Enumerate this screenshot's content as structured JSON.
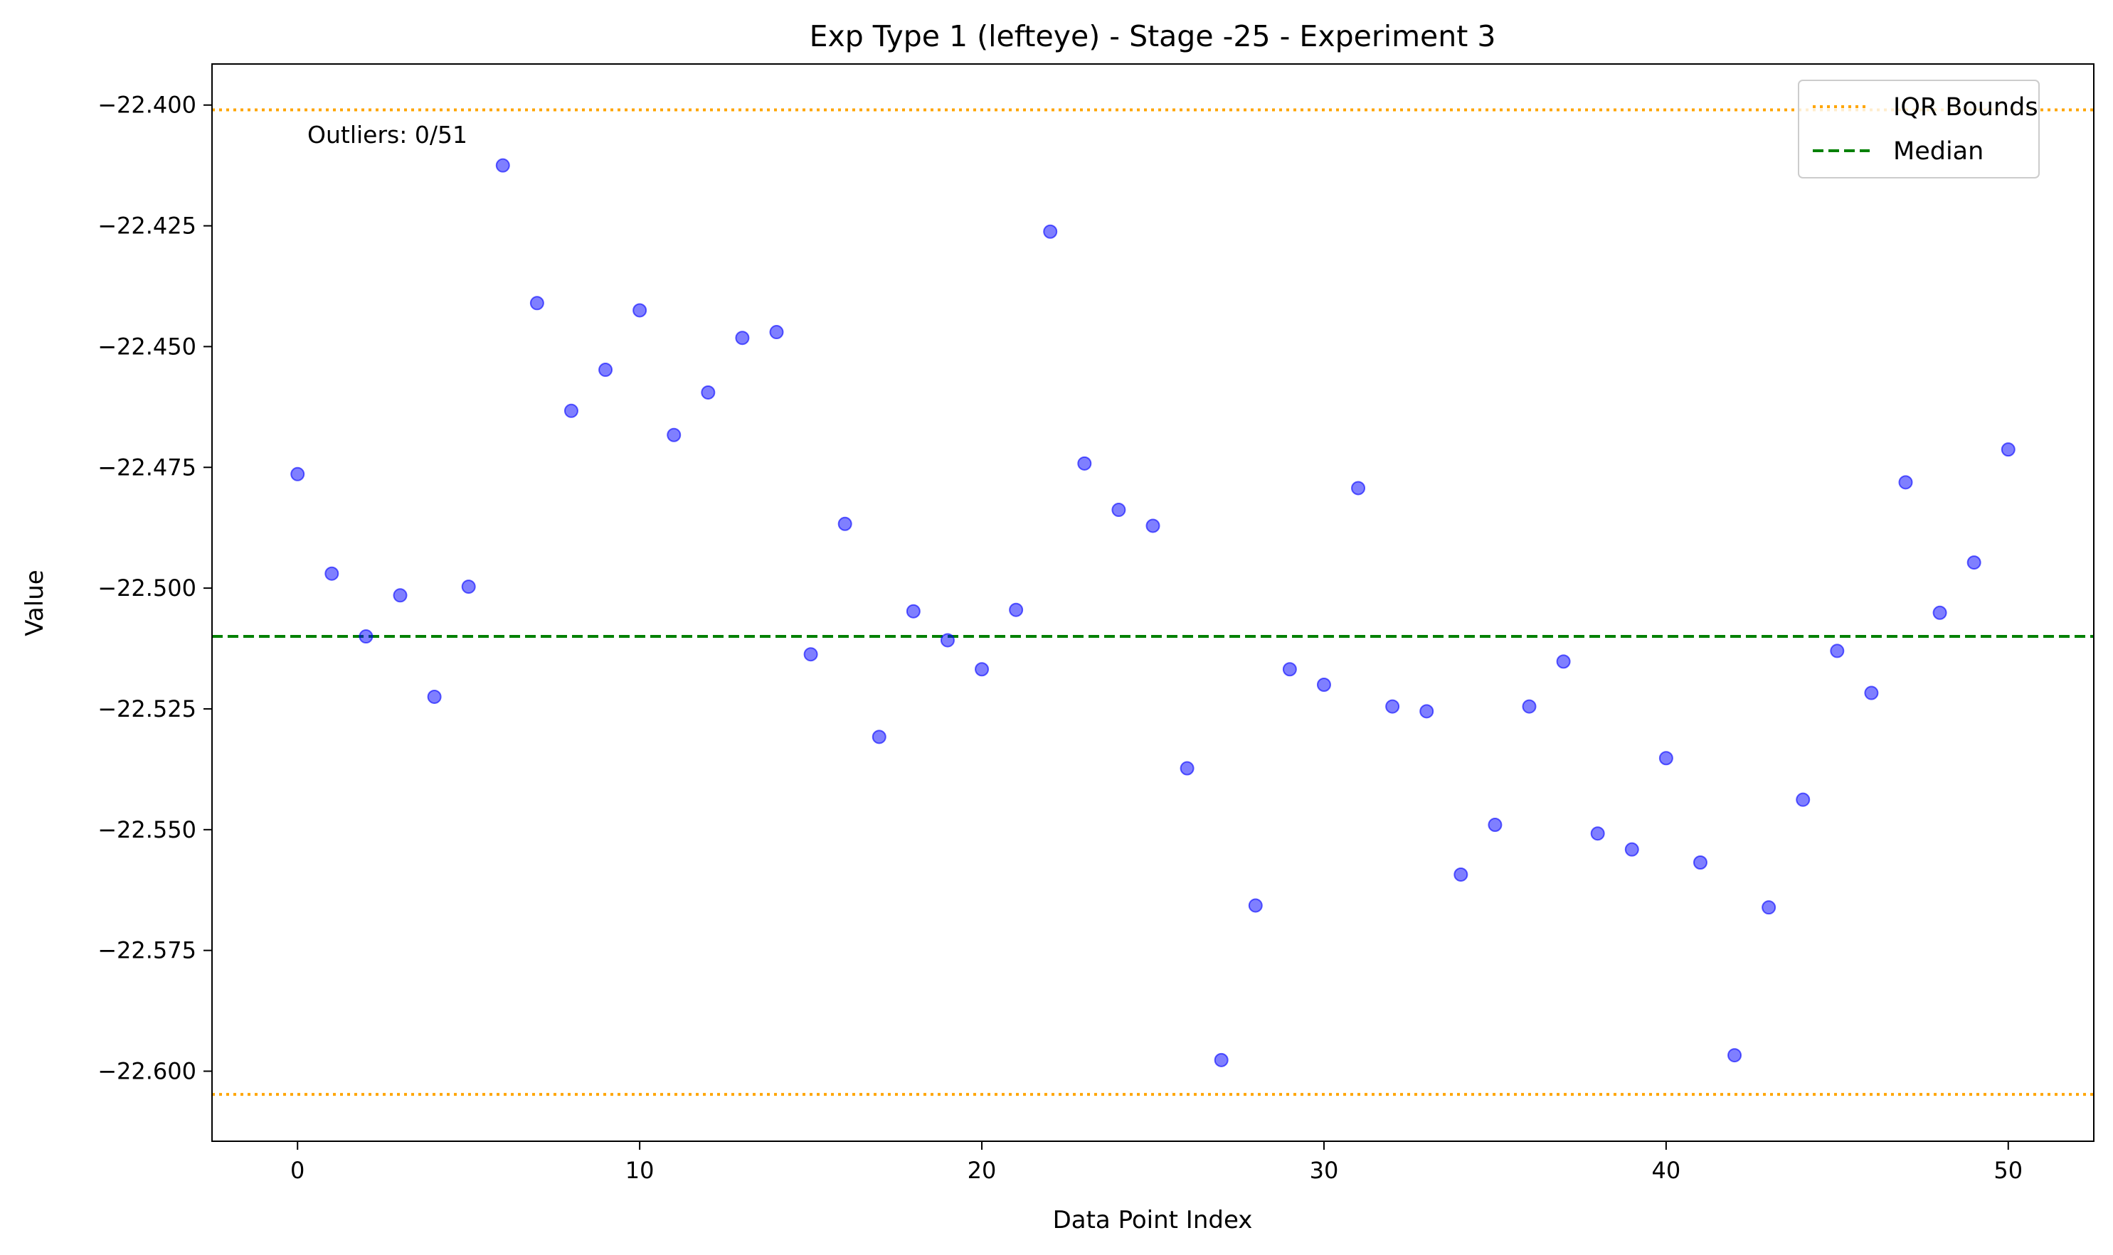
{
  "chart_data": {
    "type": "scatter",
    "title": "Exp Type 1 (lefteye) - Stage -25 - Experiment 3",
    "xlabel": "Data Point Index",
    "ylabel": "Value",
    "xlim": [
      -2.5,
      52.5
    ],
    "ylim": [
      -22.6145,
      -22.3915
    ],
    "xticks": [
      0,
      10,
      20,
      30,
      40,
      50
    ],
    "xtick_labels": [
      "0",
      "10",
      "20",
      "30",
      "40",
      "50"
    ],
    "yticks": [
      -22.4,
      -22.425,
      -22.45,
      -22.475,
      -22.5,
      -22.525,
      -22.55,
      -22.575,
      -22.6
    ],
    "ytick_labels": [
      "−22.400",
      "−22.425",
      "−22.450",
      "−22.475",
      "−22.500",
      "−22.525",
      "−22.550",
      "−22.575",
      "−22.600"
    ],
    "grid": false,
    "legend_position": "top-right",
    "annotation": "Outliers: 0/51",
    "series": [
      {
        "color": "#0000ff",
        "x": [
          0,
          1,
          2,
          3,
          4,
          5,
          6,
          7,
          8,
          9,
          10,
          11,
          12,
          13,
          14,
          15,
          16,
          17,
          18,
          19,
          20,
          21,
          22,
          23,
          24,
          25,
          26,
          27,
          28,
          29,
          30,
          31,
          32,
          33,
          34,
          35,
          36,
          37,
          38,
          39,
          40,
          41,
          42,
          43,
          44,
          45,
          46,
          47,
          48,
          49,
          50
        ],
        "y": [
          -22.4764,
          -22.497,
          -22.51,
          -22.5015,
          -22.5225,
          -22.4997,
          -22.4125,
          -22.441,
          -22.4633,
          -22.4548,
          -22.4425,
          -22.4683,
          -22.4595,
          -22.4482,
          -22.447,
          -22.5137,
          -22.4867,
          -22.5308,
          -22.5048,
          -22.5108,
          -22.5168,
          -22.5045,
          -22.4262,
          -22.4742,
          -22.4838,
          -22.4871,
          -22.5373,
          -22.5977,
          -22.5657,
          -22.5168,
          -22.52,
          -22.4793,
          -22.5245,
          -22.5255,
          -22.5593,
          -22.549,
          -22.5245,
          -22.5152,
          -22.5508,
          -22.5541,
          -22.5352,
          -22.5568,
          -22.5967,
          -22.5661,
          -22.5438,
          -22.513,
          -22.5217,
          -22.4781,
          -22.5051,
          -22.4947,
          -22.4713
        ]
      }
    ],
    "lines": [
      {
        "name": "IQR Bounds",
        "y": -22.401,
        "color": "#ffa500",
        "style": "dotted"
      },
      {
        "name": "IQR Bounds",
        "y": -22.6048,
        "color": "#ffa500",
        "style": "dotted"
      },
      {
        "name": "Median",
        "y": -22.51,
        "color": "#008000",
        "style": "dashed"
      }
    ],
    "legend": [
      {
        "label": "IQR Bounds",
        "color": "#ffa500",
        "style": "dotted"
      },
      {
        "label": "Median",
        "color": "#008000",
        "style": "dashed"
      }
    ]
  }
}
